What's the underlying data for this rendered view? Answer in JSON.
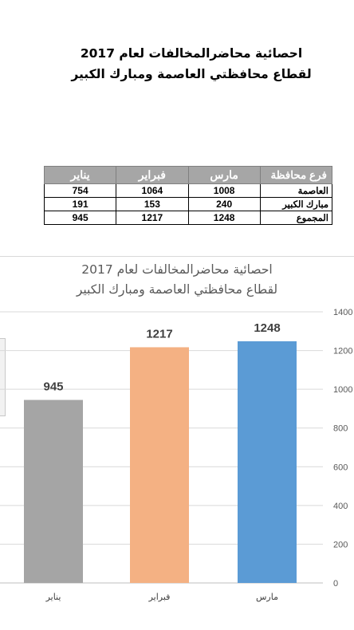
{
  "document": {
    "title_line1": "احصائية محاضرالمخالفات لعام 2017",
    "title_line2": "لقطاع محافظتي العاصمة ومبارك الكبير"
  },
  "table": {
    "headers": [
      "فرع محافظة",
      "مارس",
      "فبراير",
      "يناير"
    ],
    "rows": [
      {
        "branch": "العاصمة",
        "march": "1008",
        "february": "1064",
        "january": "754"
      },
      {
        "branch": "مبارك الكبير",
        "march": "240",
        "february": "153",
        "january": "191"
      },
      {
        "branch": "المجموع",
        "march": "1248",
        "february": "1217",
        "january": "945"
      }
    ]
  },
  "chart_data": {
    "type": "bar",
    "title": "احصائية محاضرالمخالفات لعام 2017",
    "subtitle": "لقطاع محافظتي العاصمة ومبارك الكبير",
    "categories": [
      "يناير",
      "فبراير",
      "مارس"
    ],
    "values": [
      945,
      1217,
      1248
    ],
    "data_labels": [
      "945",
      "1217",
      "1248"
    ],
    "colors": [
      "#a5a5a5",
      "#f4b183",
      "#5b9bd5"
    ],
    "y_ticks": [
      0,
      200,
      400,
      600,
      800,
      1000,
      1200,
      1400
    ],
    "ylim": [
      0,
      1400
    ],
    "y_axis_side": "right",
    "grid": true,
    "xlabel": "",
    "ylabel": ""
  }
}
